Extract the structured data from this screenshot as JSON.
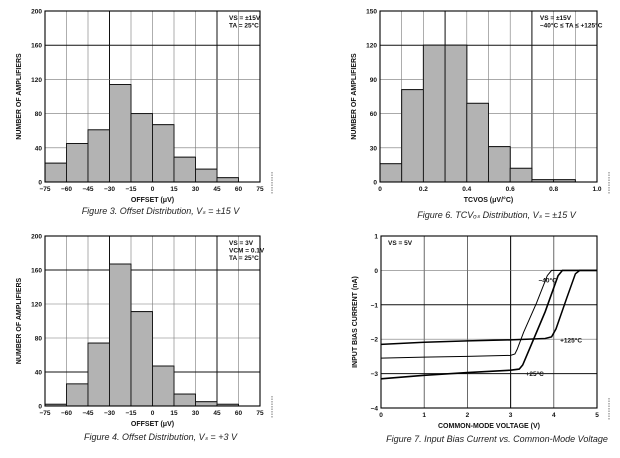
{
  "chart_data": [
    {
      "id": "fig3",
      "type": "bar",
      "title": "Figure 3. Offset Distribution, VS = ±15 V",
      "caption": "Figure 3. Offset Distribution, Vₛ = ±15 V",
      "xlabel": "OFFSET (μV)",
      "ylabel": "NUMBER OF AMPLIFIERS",
      "xlim": [
        -75,
        75
      ],
      "ylim": [
        0,
        200
      ],
      "xticks": [
        "−75",
        "−60",
        "−45",
        "−30",
        "−15",
        "0",
        "15",
        "30",
        "45",
        "60",
        "75"
      ],
      "yticks": [
        "0",
        "40",
        "80",
        "120",
        "160",
        "200"
      ],
      "bin_edges": [
        -75,
        -60,
        -45,
        -30,
        -15,
        0,
        15,
        30,
        45,
        60,
        75
      ],
      "values": [
        22,
        45,
        61,
        114,
        80,
        67,
        29,
        15,
        5,
        0
      ],
      "annotation": [
        "VS = ±15V",
        "TA = 25°C"
      ],
      "grid": true
    },
    {
      "id": "fig6",
      "type": "bar",
      "title": "Figure 6. TCVOS Distribution, VS = ±15 V",
      "caption": "Figure 6. TCVₒₛ Distribution, Vₛ = ±15 V",
      "xlabel": "TCVOS (μV/°C)",
      "ylabel": "NUMBER OF AMPLIFIERS",
      "xlim": [
        0,
        1.0
      ],
      "ylim": [
        0,
        150
      ],
      "xticks": [
        "0",
        "0.2",
        "0.4",
        "0.6",
        "0.8",
        "1.0"
      ],
      "yticks": [
        "0",
        "30",
        "60",
        "90",
        "120",
        "150"
      ],
      "bin_edges": [
        0,
        0.1,
        0.2,
        0.3,
        0.4,
        0.5,
        0.6,
        0.7,
        0.8,
        0.9,
        1.0
      ],
      "values": [
        16,
        81,
        120,
        120,
        69,
        31,
        12,
        2,
        2,
        0
      ],
      "annotation": [
        "VS = ±15V",
        "−40°C ≤ TA ≤ +125°C"
      ],
      "grid": true
    },
    {
      "id": "fig4",
      "type": "bar",
      "title": "Figure 4. Offset Distribution, VS = +3 V",
      "caption": "Figure 4. Offset Distribution, Vₛ = +3 V",
      "xlabel": "OFFSET (μV)",
      "ylabel": "NUMBER OF AMPLIFIERS",
      "xlim": [
        -75,
        75
      ],
      "ylim": [
        0,
        200
      ],
      "xticks": [
        "−75",
        "−60",
        "−45",
        "−30",
        "−15",
        "0",
        "15",
        "30",
        "45",
        "60",
        "75"
      ],
      "yticks": [
        "0",
        "40",
        "80",
        "120",
        "160",
        "200"
      ],
      "bin_edges": [
        -75,
        -60,
        -45,
        -30,
        -15,
        0,
        15,
        30,
        45,
        60,
        75
      ],
      "values": [
        2,
        26,
        74,
        167,
        111,
        47,
        14,
        5,
        2,
        0
      ],
      "annotation": [
        "VS = 3V",
        "VCM = 0.1V",
        "TA = 25°C"
      ],
      "grid": true
    },
    {
      "id": "fig7",
      "type": "line",
      "title": "Figure 7. Input Bias Current vs. Common-Mode Voltage",
      "caption": "Figure 7. Input Bias Current vs. Common-Mode Voltage",
      "xlabel": "COMMON-MODE VOLTAGE (V)",
      "ylabel": "INPUT BIAS CURRENT (nA)",
      "xlim": [
        0,
        5
      ],
      "ylim": [
        -4,
        1
      ],
      "xticks": [
        "0",
        "1",
        "2",
        "3",
        "4",
        "5"
      ],
      "yticks": [
        "−4",
        "−3",
        "−2",
        "−1",
        "0",
        "1"
      ],
      "annotation": [
        "VS = 5V"
      ],
      "grid": true,
      "series": [
        {
          "name": "−40°C",
          "label_at": [
            3.6,
            -0.28
          ],
          "x": [
            0,
            1,
            2,
            3,
            3.1,
            3.15,
            3.3,
            3.6,
            3.85,
            3.95,
            4.05,
            5
          ],
          "y": [
            -2.55,
            -2.52,
            -2.5,
            -2.47,
            -2.43,
            -2.3,
            -1.8,
            -0.95,
            -0.15,
            0,
            0,
            0
          ]
        },
        {
          "name": "+25°C",
          "label_at": [
            3.3,
            -3.0
          ],
          "x": [
            0,
            1,
            2,
            3,
            3.2,
            3.28,
            3.5,
            3.8,
            4.1,
            4.2,
            4.3,
            5
          ],
          "y": [
            -3.15,
            -3.05,
            -2.97,
            -2.9,
            -2.87,
            -2.75,
            -2.1,
            -1.2,
            -0.15,
            0,
            0,
            0
          ]
        },
        {
          "name": "+125°C",
          "label_at": [
            4.1,
            -2.03
          ],
          "x": [
            0,
            1,
            2,
            3,
            3.8,
            3.95,
            4.05,
            4.3,
            4.5,
            4.6,
            4.7,
            5
          ],
          "y": [
            -2.15,
            -2.09,
            -2.05,
            -2.02,
            -1.98,
            -1.93,
            -1.7,
            -0.8,
            -0.1,
            0,
            0,
            0
          ]
        }
      ]
    }
  ]
}
